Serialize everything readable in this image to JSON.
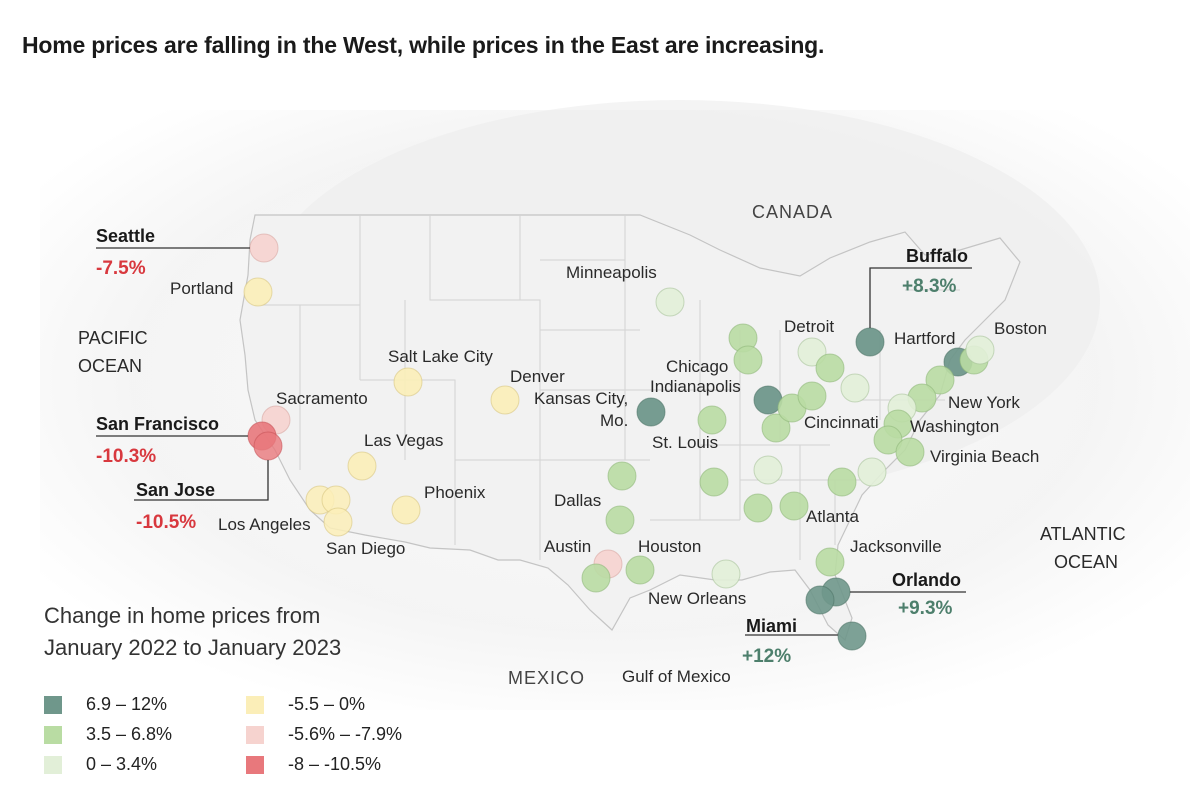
{
  "title": "Home prices are falling in the West, while prices in the East are increasing.",
  "colors": {
    "dark_green": "#6f978b",
    "green": "#b9dca3",
    "light_green": "#e2efd8",
    "yellow": "#fbeeb8",
    "pink": "#f6d3cf",
    "red": "#e8787c",
    "negative_text": "#d8383e",
    "positive_text": "#4d7f6c"
  },
  "region_labels": {
    "canada": "CANADA",
    "mexico": "MEXICO",
    "pacific_1": "PACIFIC",
    "pacific_2": "OCEAN",
    "atlantic_1": "ATLANTIC",
    "atlantic_2": "OCEAN",
    "gulf": "Gulf of Mexico"
  },
  "city_labels": {
    "portland": "Portland",
    "sacramento": "Sacramento",
    "salt_lake_city": "Salt Lake City",
    "denver": "Denver",
    "las_vegas": "Las Vegas",
    "phoenix": "Phoenix",
    "los_angeles": "Los Angeles",
    "san_diego": "San Diego",
    "minneapolis": "Minneapolis",
    "kansas_city_1": "Kansas City,",
    "kansas_city_2": "Mo.",
    "chicago": "Chicago",
    "indianapolis": "Indianapolis",
    "st_louis": "St. Louis",
    "detroit": "Detroit",
    "cincinnati": "Cincinnati",
    "dallas": "Dallas",
    "austin": "Austin",
    "houston": "Houston",
    "new_orleans": "New Orleans",
    "atlanta": "Atlanta",
    "jacksonville": "Jacksonville",
    "hartford": "Hartford",
    "boston": "Boston",
    "new_york": "New York",
    "washington": "Washington",
    "virginia_beach": "Virginia Beach"
  },
  "callouts": {
    "seattle": {
      "name": "Seattle",
      "value": "-7.5%"
    },
    "san_francisco": {
      "name": "San Francisco",
      "value": "-10.3%"
    },
    "san_jose": {
      "name": "San Jose",
      "value": "-10.5%"
    },
    "buffalo": {
      "name": "Buffalo",
      "value": "+8.3%"
    },
    "orlando": {
      "name": "Orlando",
      "value": "+9.3%"
    },
    "miami": {
      "name": "Miami",
      "value": "+12%"
    }
  },
  "legend": {
    "title_line1": "Change in home prices from",
    "title_line2": "January 2022 to January 2023",
    "items": [
      {
        "label": "6.9 – 12%",
        "color": "#6f978b"
      },
      {
        "label": "3.5 – 6.8%",
        "color": "#b9dca3"
      },
      {
        "label": "0 – 3.4%",
        "color": "#e2efd8"
      },
      {
        "label": "-5.5 – 0%",
        "color": "#fbeeb8"
      },
      {
        "label": "-5.6% – -7.9%",
        "color": "#f6d3cf"
      },
      {
        "label": "-8 – -10.5%",
        "color": "#e8787c"
      }
    ]
  }
}
